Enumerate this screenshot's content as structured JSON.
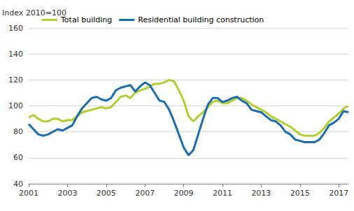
{
  "chart_data": {
    "type": "line",
    "y_label": "Index 2010=100",
    "categories": [
      "2001",
      null,
      null,
      null,
      null,
      null,
      null,
      null,
      "2003",
      null,
      null,
      null,
      null,
      null,
      null,
      null,
      "2005",
      null,
      null,
      null,
      null,
      null,
      null,
      null,
      "2007",
      null,
      null,
      null,
      null,
      null,
      null,
      null,
      "2009",
      null,
      null,
      null,
      null,
      null,
      null,
      null,
      "2011",
      null,
      null,
      null,
      null,
      null,
      null,
      null,
      "2013",
      null,
      null,
      null,
      null,
      null,
      null,
      null,
      "2015",
      null,
      null,
      null,
      null,
      null,
      null,
      null,
      "2017",
      null,
      null
    ],
    "series": [
      {
        "name": "Total building",
        "color": "#b2cd32",
        "values": [
          91,
          93,
          90,
          88,
          88,
          90,
          90,
          88,
          89,
          89,
          92,
          95,
          96,
          97,
          98,
          99,
          98,
          99,
          103,
          107,
          108,
          106,
          110,
          112,
          113,
          115,
          117,
          117,
          118,
          120,
          119,
          112,
          104,
          92,
          88,
          92,
          95,
          99,
          103,
          104,
          102,
          102,
          104,
          106,
          106,
          104,
          101,
          99,
          97,
          95,
          92,
          90,
          88,
          86,
          84,
          81,
          78,
          77,
          77,
          77,
          79,
          83,
          88,
          91,
          94,
          98,
          100
        ]
      },
      {
        "name": "Residential building construction",
        "color": "#1b6cac",
        "values": [
          86,
          82,
          78,
          77,
          78,
          80,
          82,
          81,
          83,
          85,
          92,
          98,
          102,
          106,
          107,
          105,
          104,
          106,
          112,
          114,
          115,
          116,
          111,
          115,
          118,
          116,
          110,
          104,
          103,
          97,
          88,
          78,
          68,
          62,
          66,
          78,
          90,
          101,
          106,
          106,
          103,
          104,
          106,
          107,
          104,
          102,
          97,
          96,
          95,
          92,
          89,
          88,
          85,
          80,
          78,
          74,
          73,
          72,
          72,
          72,
          74,
          79,
          85,
          87,
          90,
          96,
          95
        ]
      }
    ],
    "ylim": [
      40,
      160
    ],
    "yticks": [
      40,
      60,
      80,
      100,
      120,
      140,
      160
    ],
    "grid": true,
    "legend": "top"
  }
}
